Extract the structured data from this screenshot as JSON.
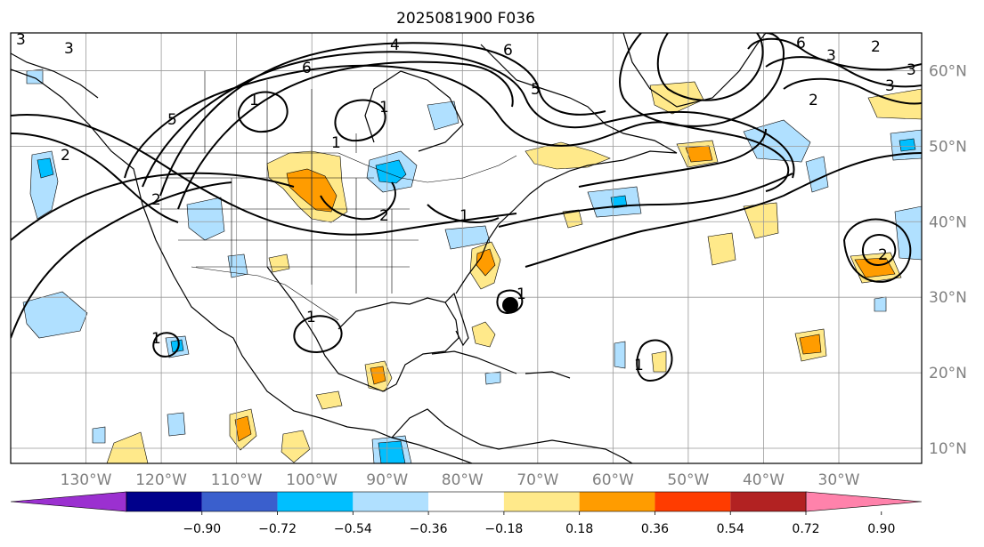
{
  "title": "2025081900 F036",
  "map": {
    "projection": "PlateCarree",
    "extent": {
      "lon": [
        -140,
        -19
      ],
      "lat": [
        8,
        65
      ]
    },
    "lon_ticks": [
      {
        "value": -130,
        "label": "130°W"
      },
      {
        "value": -120,
        "label": "120°W"
      },
      {
        "value": -110,
        "label": "110°W"
      },
      {
        "value": -100,
        "label": "100°W"
      },
      {
        "value": -90,
        "label": "90°W"
      },
      {
        "value": -80,
        "label": "80°W"
      },
      {
        "value": -70,
        "label": "70°W"
      },
      {
        "value": -60,
        "label": "60°W"
      },
      {
        "value": -50,
        "label": "50°W"
      },
      {
        "value": -40,
        "label": "40°W"
      },
      {
        "value": -30,
        "label": "30°W"
      }
    ],
    "lat_ticks": [
      {
        "value": 60,
        "label": "60°N"
      },
      {
        "value": 50,
        "label": "50°N"
      },
      {
        "value": 40,
        "label": "40°N"
      },
      {
        "value": 30,
        "label": "30°N"
      },
      {
        "value": 20,
        "label": "20°N"
      },
      {
        "value": 10,
        "label": "10°N"
      }
    ],
    "gridlines": true
  },
  "colorbar": {
    "extend": "both",
    "colors": [
      "#9b30d0",
      "#00008b",
      "#3a5fcd",
      "#00bfff",
      "#b0e0ff",
      "#ffffff",
      "#ffe98a",
      "#ff9c00",
      "#ff3c00",
      "#b22222",
      "#ff82ab"
    ],
    "ticks": [
      "−0.90",
      "−0.72",
      "−0.54",
      "−0.36",
      "−0.18",
      "0.18",
      "0.36",
      "0.54",
      "0.72",
      "0.90"
    ]
  },
  "contour_labels": [
    "3",
    "4",
    "6",
    "5",
    "6",
    "3",
    "2",
    "3",
    "6",
    "1",
    "5",
    "1",
    "2",
    "1",
    "1",
    "2",
    "2",
    "1",
    "1",
    "1",
    "1",
    "2",
    "3",
    "2",
    "3"
  ],
  "colors": {
    "positive": "#ffe98a",
    "positive_strong": "#ff9c00",
    "negative": "#b0e0ff",
    "negative_strong": "#00bfff"
  }
}
